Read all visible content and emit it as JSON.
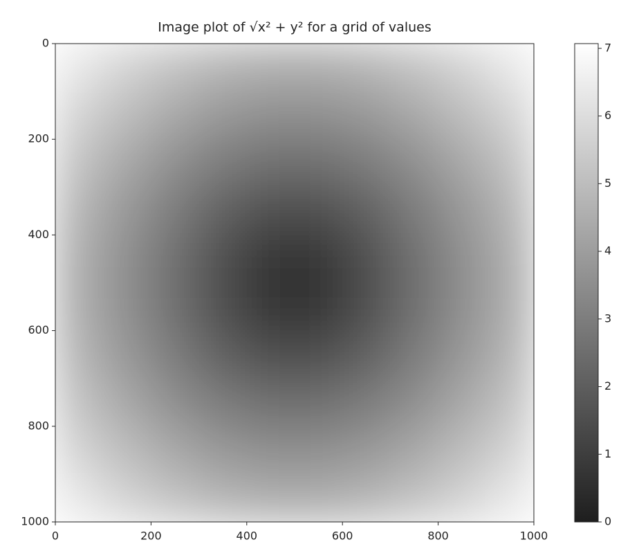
{
  "chart_data": {
    "type": "image",
    "title": "Image plot of √x² + y² for a grid of values",
    "xlim": [
      0,
      1000
    ],
    "ylim": [
      1000,
      0
    ],
    "xticks": [
      0,
      200,
      400,
      600,
      800,
      1000
    ],
    "yticks": [
      0,
      200,
      400,
      600,
      800,
      1000
    ],
    "cmap": [
      "#1e1e1e",
      "#ffffff"
    ],
    "clim": [
      0,
      7.07
    ],
    "cticks": [
      0,
      1,
      2,
      3,
      4,
      5,
      6,
      7
    ],
    "values": [
      [
        6.36,
        5.7,
        5.15,
        4.74,
        4.53,
        4.53,
        4.74,
        5.15,
        5.7,
        6.36
      ],
      [
        5.7,
        4.95,
        4.3,
        3.81,
        3.54,
        3.54,
        3.81,
        4.3,
        4.95,
        5.7
      ],
      [
        5.15,
        4.3,
        3.54,
        2.92,
        2.55,
        2.55,
        2.92,
        3.54,
        4.3,
        5.15
      ],
      [
        4.74,
        3.81,
        2.92,
        2.12,
        1.58,
        1.58,
        2.12,
        2.92,
        3.81,
        4.74
      ],
      [
        4.53,
        3.54,
        2.55,
        1.58,
        0.71,
        0.71,
        1.58,
        2.55,
        3.54,
        4.53
      ],
      [
        4.53,
        3.54,
        2.55,
        1.58,
        0.71,
        0.71,
        1.58,
        2.55,
        3.54,
        4.53
      ],
      [
        4.74,
        3.81,
        2.92,
        2.12,
        1.58,
        1.58,
        2.12,
        2.92,
        3.81,
        4.74
      ],
      [
        5.15,
        4.3,
        3.54,
        2.92,
        2.55,
        2.55,
        2.92,
        3.54,
        4.3,
        5.15
      ],
      [
        5.7,
        4.95,
        4.3,
        3.81,
        3.54,
        3.54,
        3.81,
        4.3,
        4.95,
        5.7
      ],
      [
        6.36,
        5.7,
        5.15,
        4.74,
        4.53,
        4.53,
        4.74,
        5.15,
        5.7,
        6.36
      ]
    ]
  }
}
